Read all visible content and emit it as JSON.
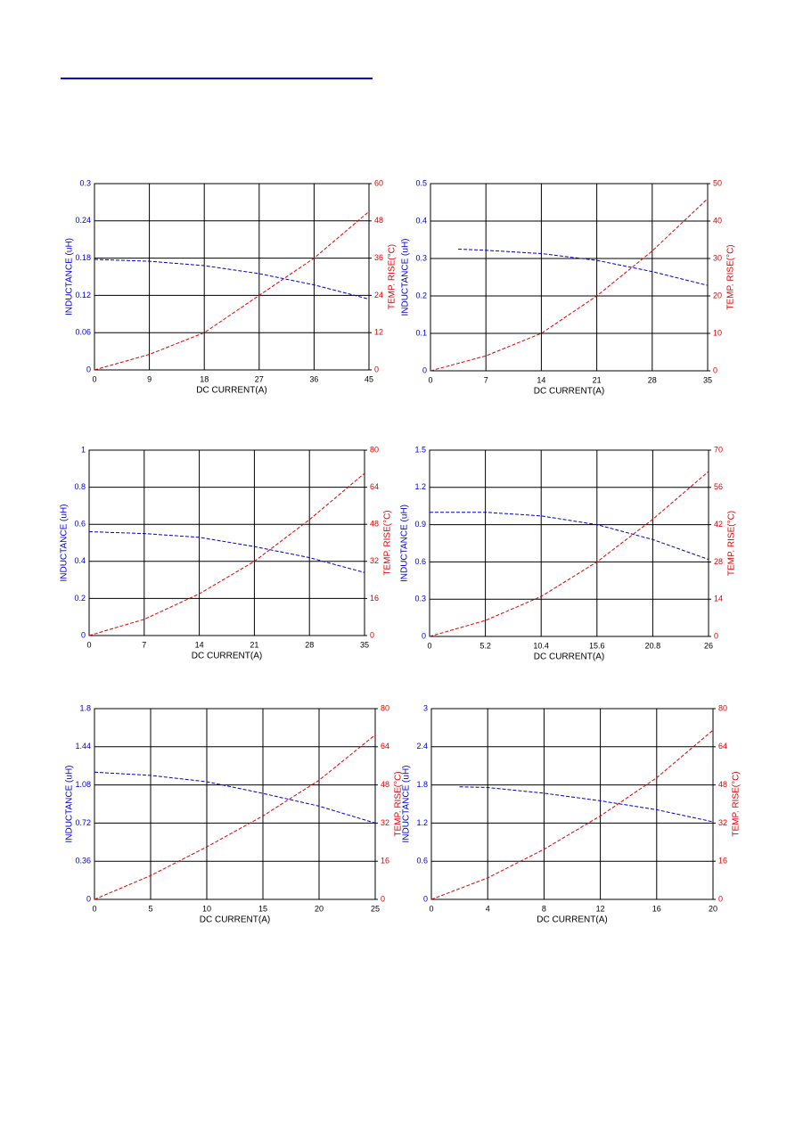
{
  "chart_data": [
    {
      "type": "line",
      "xlabel": "DC CURRENT(A)",
      "ylabel": "INDUCTANCE (uH)",
      "y2label": "TEMP. RISE(°C)",
      "xlim": [
        0,
        45
      ],
      "xticks": [
        0,
        9,
        18,
        27,
        36,
        45
      ],
      "ylim": [
        0,
        0.3
      ],
      "yticks": [
        0,
        0.06,
        0.12,
        0.18,
        0.24,
        0.3
      ],
      "y2lim": [
        0,
        60
      ],
      "y2ticks": [
        0,
        12,
        24,
        36,
        48,
        60
      ],
      "grid": true,
      "series": [
        {
          "name": "INDUCTANCE",
          "color": "#0000cc",
          "x": [
            0,
            9,
            18,
            27,
            36,
            45
          ],
          "values": [
            0.178,
            0.175,
            0.168,
            0.155,
            0.137,
            0.114
          ]
        },
        {
          "name": "TEMP. RISE",
          "color": "#e00000",
          "axis": "y2",
          "x": [
            0,
            9,
            18,
            27,
            36,
            45
          ],
          "values": [
            0,
            5,
            12,
            24,
            36,
            51
          ]
        }
      ]
    },
    {
      "type": "line",
      "xlabel": "DC CURRENT(A)",
      "ylabel": "INDUCTANCE (uH)",
      "y2label": "TEMP. RISE(°C)",
      "xlim": [
        0,
        35
      ],
      "xticks": [
        0,
        7,
        14,
        21,
        28,
        35
      ],
      "ylim": [
        0,
        0.5
      ],
      "yticks": [
        0,
        0.1,
        0.2,
        0.3,
        0.4,
        0.5
      ],
      "y2lim": [
        0,
        50
      ],
      "y2ticks": [
        0,
        10,
        20,
        30,
        40,
        50
      ],
      "grid": true,
      "series": [
        {
          "name": "INDUCTANCE",
          "color": "#0000cc",
          "x": [
            3.5,
            7,
            14,
            21,
            28,
            35
          ],
          "values": [
            0.325,
            0.322,
            0.313,
            0.295,
            0.265,
            0.228
          ]
        },
        {
          "name": "TEMP. RISE",
          "color": "#e00000",
          "axis": "y2",
          "x": [
            0,
            7,
            14,
            21,
            28,
            35
          ],
          "values": [
            0,
            4,
            10,
            20,
            32,
            46
          ]
        }
      ]
    },
    {
      "type": "line",
      "xlabel": "DC CURRENT(A)",
      "ylabel": "INDUCTANCE (uH)",
      "y2label": "TEMP. RISE(°C)",
      "xlim": [
        0,
        35
      ],
      "xticks": [
        0,
        7,
        14,
        21,
        28,
        35
      ],
      "ylim": [
        0,
        1
      ],
      "yticks": [
        0,
        0.2,
        0.4,
        0.6,
        0.8,
        1
      ],
      "y2lim": [
        0,
        80
      ],
      "y2ticks": [
        0,
        16,
        32,
        48,
        64,
        80
      ],
      "grid": true,
      "series": [
        {
          "name": "INDUCTANCE",
          "color": "#0000cc",
          "x": [
            0,
            7,
            14,
            21,
            28,
            35
          ],
          "values": [
            0.56,
            0.55,
            0.53,
            0.48,
            0.42,
            0.34
          ]
        },
        {
          "name": "TEMP. RISE",
          "color": "#e00000",
          "axis": "y2",
          "x": [
            0,
            7,
            14,
            21,
            28,
            35
          ],
          "values": [
            0,
            7,
            18,
            32,
            50,
            70
          ]
        }
      ]
    },
    {
      "type": "line",
      "xlabel": "DC CURRENT(A)",
      "ylabel": "INDUCTANCE (uH)",
      "y2label": "TEMP. RISE(°C)",
      "xlim": [
        0,
        26
      ],
      "xticks": [
        0,
        5.2,
        10.4,
        15.6,
        20.8,
        26
      ],
      "ylim": [
        0,
        1.5
      ],
      "yticks": [
        0,
        0.3,
        0.6,
        0.9,
        1.2,
        1.5
      ],
      "y2lim": [
        0,
        70
      ],
      "y2ticks": [
        0,
        14,
        28,
        42,
        56,
        70
      ],
      "grid": true,
      "series": [
        {
          "name": "INDUCTANCE",
          "color": "#0000cc",
          "x": [
            0,
            5.2,
            10.4,
            15.6,
            20.8,
            26
          ],
          "values": [
            1.0,
            1.0,
            0.97,
            0.9,
            0.78,
            0.62
          ]
        },
        {
          "name": "TEMP. RISE",
          "color": "#e00000",
          "axis": "y2",
          "x": [
            0,
            5.2,
            10.4,
            15.6,
            20.8,
            26
          ],
          "values": [
            0,
            6,
            15,
            28,
            44,
            62
          ]
        }
      ]
    },
    {
      "type": "line",
      "xlabel": "DC CURRENT(A)",
      "ylabel": "INDUCTANCE (uH)",
      "y2label": "TEMP. RISE(°C)",
      "xlim": [
        0,
        25
      ],
      "xticks": [
        0,
        5,
        10,
        15,
        20,
        25
      ],
      "ylim": [
        0,
        1.8
      ],
      "yticks": [
        0,
        0.36,
        0.72,
        1.08,
        1.44,
        1.8
      ],
      "y2lim": [
        0,
        80
      ],
      "y2ticks": [
        0,
        16,
        32,
        48,
        64,
        80
      ],
      "grid": true,
      "series": [
        {
          "name": "INDUCTANCE",
          "color": "#0000cc",
          "x": [
            0,
            5,
            10,
            15,
            20,
            25
          ],
          "values": [
            1.2,
            1.17,
            1.11,
            1.0,
            0.88,
            0.72
          ]
        },
        {
          "name": "TEMP. RISE",
          "color": "#e00000",
          "axis": "y2",
          "x": [
            0,
            5,
            10,
            15,
            20,
            25
          ],
          "values": [
            0,
            10,
            22,
            35,
            50,
            69
          ]
        }
      ]
    },
    {
      "type": "line",
      "xlabel": "DC CURRENT(A)",
      "ylabel": "INDUCTANCE (uH)",
      "y2label": "TEMP. RISE(°C)",
      "xlim": [
        0,
        20
      ],
      "xticks": [
        0,
        4,
        8,
        12,
        16,
        20
      ],
      "ylim": [
        0,
        3
      ],
      "yticks": [
        0,
        0.6,
        1.2,
        1.8,
        2.4,
        3
      ],
      "y2lim": [
        0,
        80
      ],
      "y2ticks": [
        0,
        16,
        32,
        48,
        64,
        80
      ],
      "grid": true,
      "series": [
        {
          "name": "INDUCTANCE",
          "color": "#0000cc",
          "x": [
            2,
            4,
            8,
            12,
            16,
            20
          ],
          "values": [
            1.77,
            1.76,
            1.67,
            1.55,
            1.41,
            1.22
          ]
        },
        {
          "name": "TEMP. RISE",
          "color": "#e00000",
          "axis": "y2",
          "x": [
            0,
            4,
            8,
            12,
            16,
            20
          ],
          "values": [
            0,
            9,
            21,
            35,
            51,
            71
          ]
        }
      ]
    }
  ]
}
